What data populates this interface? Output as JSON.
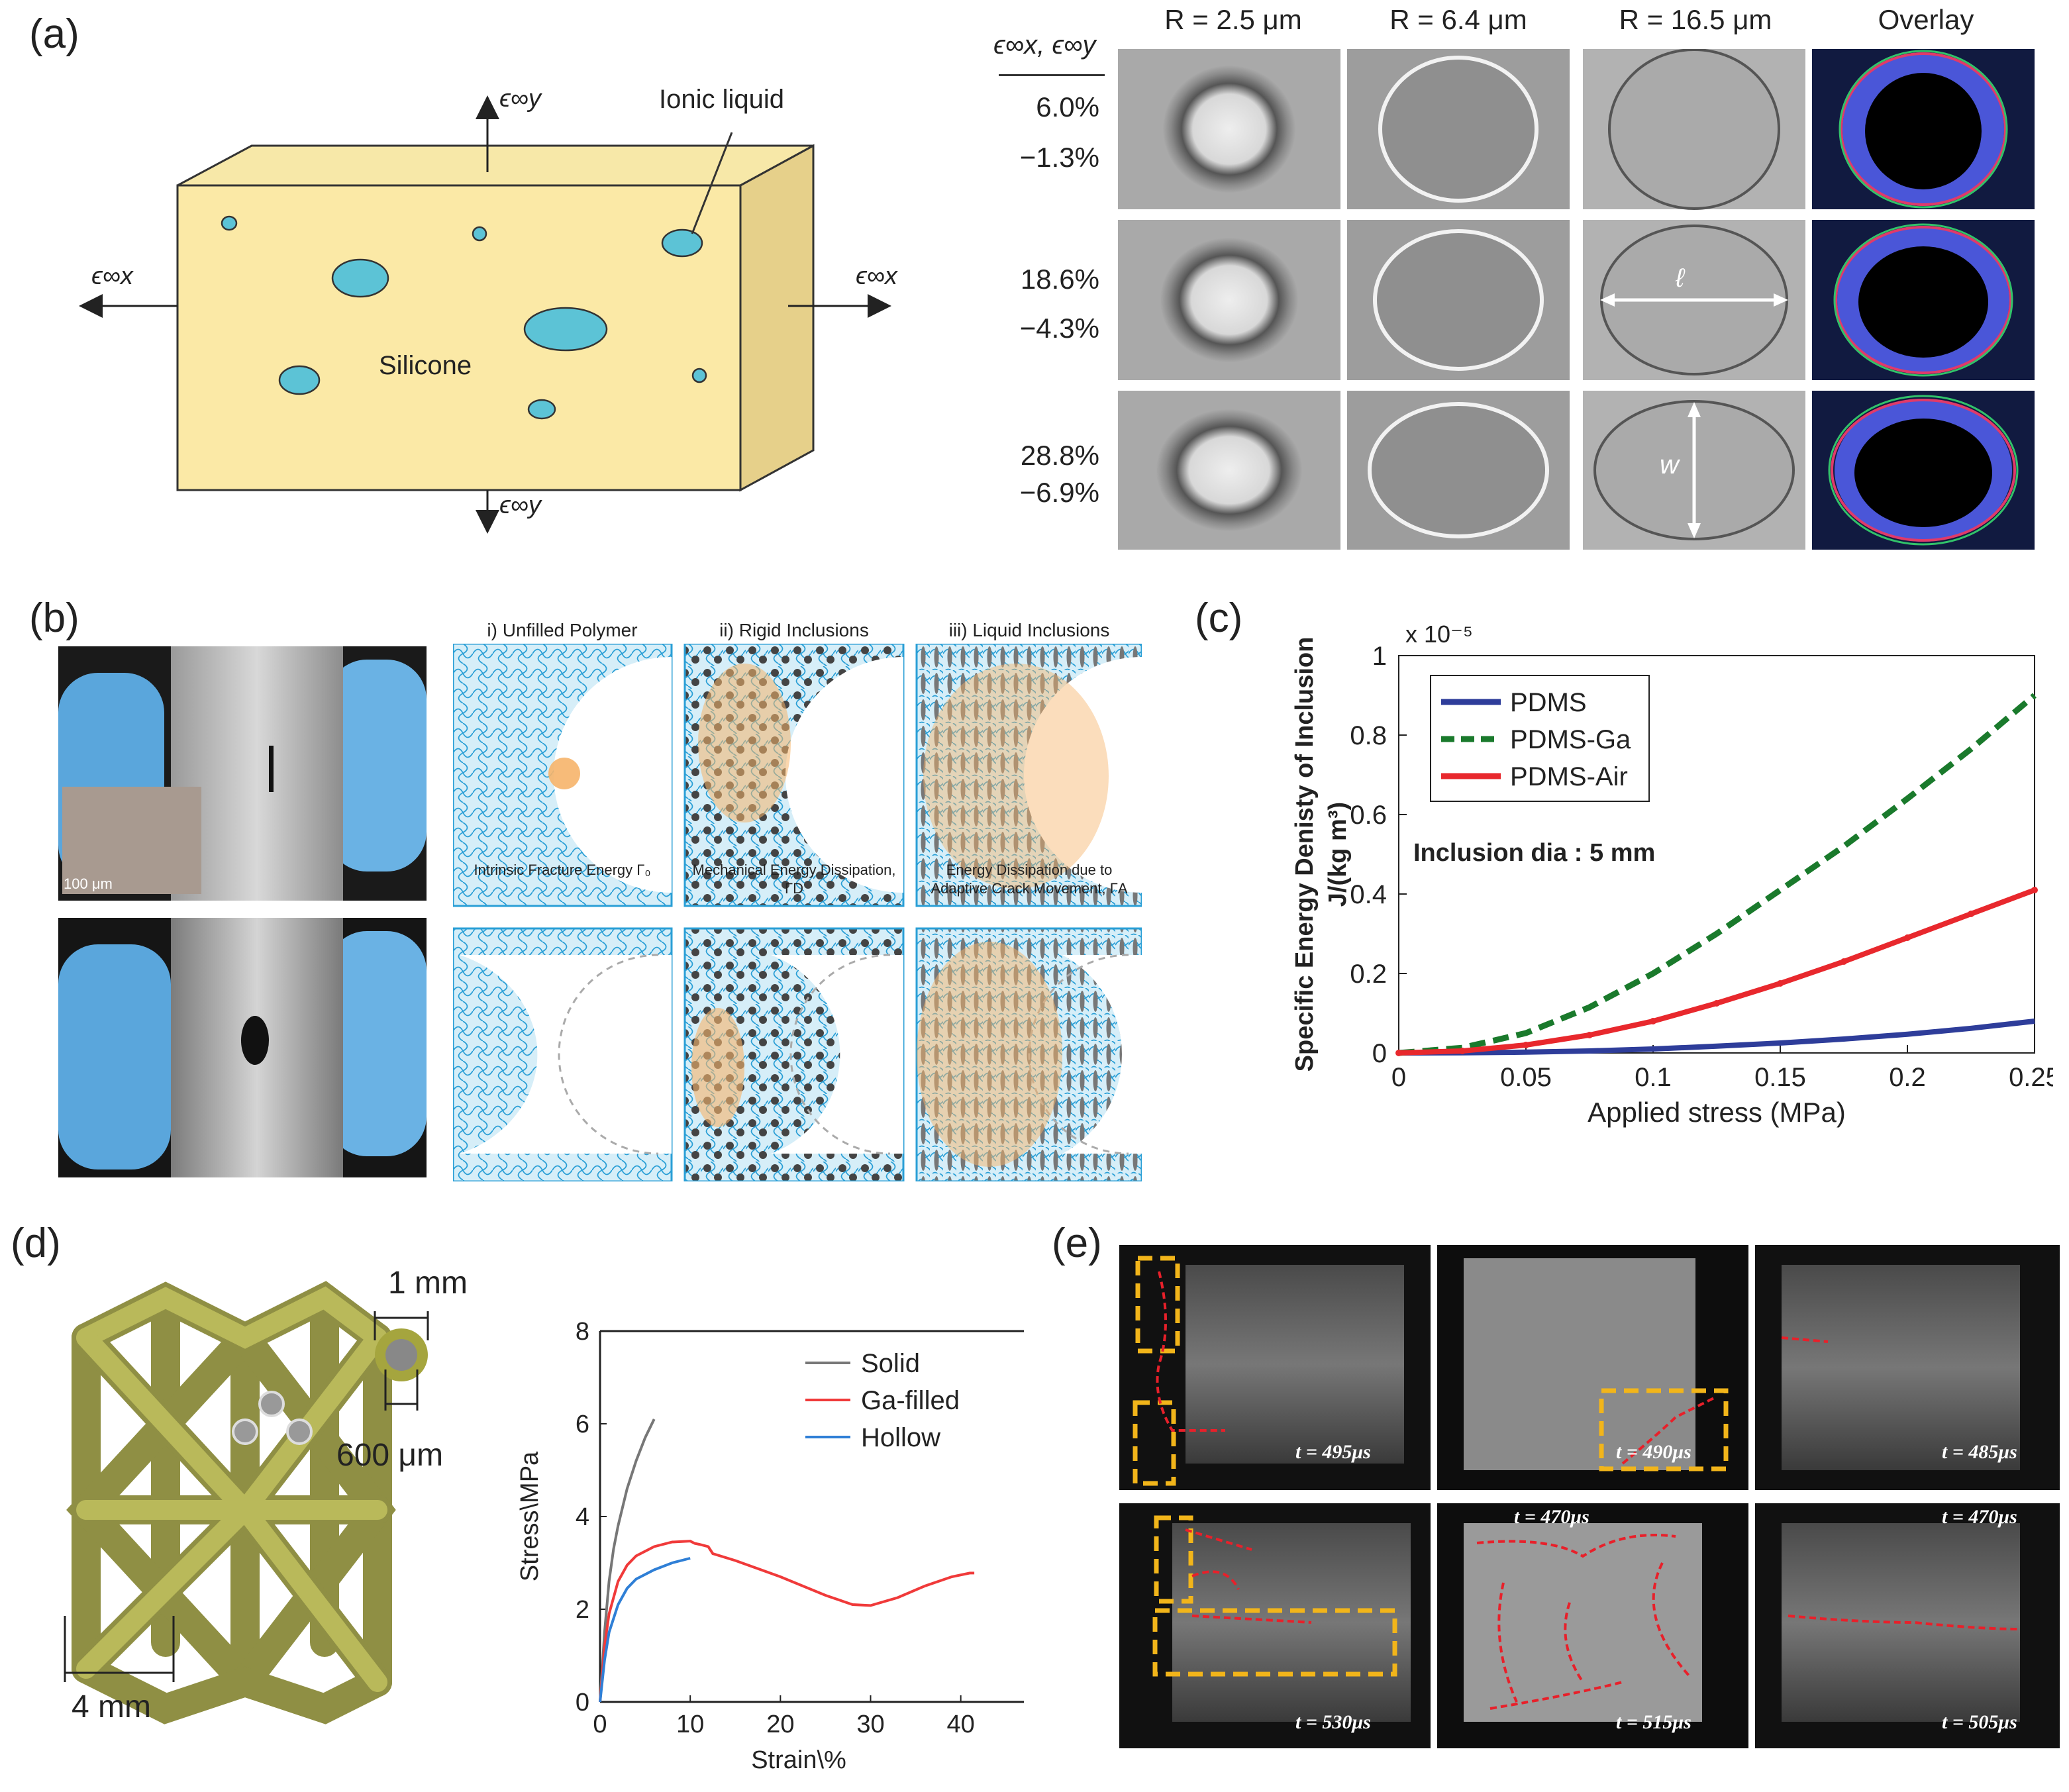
{
  "panels": {
    "a": {
      "label": "(a)",
      "schematic": {
        "ey_top": "ϵ∞y",
        "ey_bottom": "ϵ∞y",
        "ex_left": "ϵ∞x",
        "ex_right": "ϵ∞x",
        "ionic_liquid": "Ionic liquid",
        "silicone": "Silicone"
      },
      "strain_header": "ϵ∞x, ϵ∞y",
      "strain_rows": [
        {
          "ex": "6.0%",
          "ey": "−1.3%"
        },
        {
          "ex": "18.6%",
          "ey": "−4.3%"
        },
        {
          "ex": "28.8%",
          "ey": "−6.9%"
        }
      ],
      "columns": [
        "R = 2.5 μm",
        "R = 6.4 μm",
        "R = 16.5 μm",
        "Overlay"
      ],
      "ell_label": "ℓ",
      "w_label": "w"
    },
    "b": {
      "label": "(b)",
      "scale_bar": "100 μm",
      "titles": [
        "i) Unfilled Polymer",
        "ii) Rigid Inclusions",
        "iii) Liquid Inclusions"
      ],
      "captions": [
        "Intrinsic Fracture Energy Γ₀",
        "Mechanical Energy Dissipation, ΓD",
        "Energy Dissipation due to Adaptive Crack Movement, ΓA"
      ]
    },
    "c": {
      "label": "(c)",
      "annotation": "Inclusion  dia : 5 mm",
      "exponent": "x 10⁻⁵"
    },
    "d": {
      "label": "(d)",
      "dim_1mm": "1 mm",
      "dim_600um": "600 μm",
      "dim_4mm": "4 mm"
    },
    "e": {
      "label": "(e)",
      "times": [
        "t = 495μs",
        "t = 490μs",
        "t = 485μs",
        "t = 530μs",
        "t = 515μs",
        "t = 505μs",
        "t = 470μs",
        "t = 470μs"
      ]
    }
  },
  "chart_data": [
    {
      "panel": "c",
      "type": "line",
      "xlabel": "Applied stress (MPa)",
      "ylabel": "Specific Energy Denisty of Inclusion J/(kg m3)",
      "xlim": [
        0,
        0.25
      ],
      "ylim": [
        0,
        1
      ],
      "x_ticks": [
        "0",
        "0.05",
        "0.1",
        "0.15",
        "0.2",
        "0.25"
      ],
      "y_ticks": [
        "0",
        "0.2",
        "0.4",
        "0.6",
        "0.8",
        "1"
      ],
      "y_scale_note": "x 10^-5",
      "legend_position": "top-left",
      "x": [
        0,
        0.025,
        0.05,
        0.075,
        0.1,
        0.125,
        0.15,
        0.175,
        0.2,
        0.225,
        0.25
      ],
      "series": [
        {
          "name": "PDMS",
          "color": "#2e3d9a",
          "style": "solid",
          "values": [
            0,
            0.0005,
            0.002,
            0.005,
            0.01,
            0.017,
            0.025,
            0.035,
            0.047,
            0.062,
            0.08
          ]
        },
        {
          "name": "PDMS-Ga",
          "color": "#1a7a2c",
          "style": "dashed",
          "values": [
            0,
            0.013,
            0.05,
            0.115,
            0.2,
            0.3,
            0.41,
            0.52,
            0.64,
            0.765,
            0.9
          ]
        },
        {
          "name": "PDMS-Air",
          "color": "#e8282d",
          "style": "solid-marker",
          "values": [
            0,
            0.005,
            0.02,
            0.045,
            0.08,
            0.125,
            0.175,
            0.23,
            0.29,
            0.35,
            0.41
          ]
        }
      ]
    },
    {
      "panel": "d",
      "type": "line",
      "xlabel": "Strain\\%",
      "ylabel": "Stress\\MPa",
      "xlim": [
        0,
        47
      ],
      "ylim": [
        0,
        8
      ],
      "x_ticks": [
        "0",
        "10",
        "20",
        "30",
        "40"
      ],
      "y_ticks": [
        "0",
        "2",
        "4",
        "6",
        "8"
      ],
      "legend_position": "top-right",
      "series": [
        {
          "name": "Solid",
          "color": "#777777",
          "x": [
            0,
            0.5,
            1,
            1.5,
            2,
            3,
            4,
            5,
            6
          ],
          "y": [
            0,
            1.5,
            2.6,
            3.3,
            3.8,
            4.6,
            5.2,
            5.7,
            6.1
          ]
        },
        {
          "name": "Ga-filled",
          "color": "#f03a3a",
          "x": [
            0,
            0.5,
            1,
            2,
            3,
            4,
            6,
            8,
            10,
            10.5,
            11,
            12,
            12.5,
            15,
            20,
            25,
            28,
            30,
            33,
            36,
            39,
            41,
            41.5
          ],
          "y": [
            0,
            1.2,
            1.9,
            2.6,
            2.95,
            3.15,
            3.35,
            3.45,
            3.47,
            3.42,
            3.4,
            3.35,
            3.2,
            3.05,
            2.7,
            2.3,
            2.1,
            2.08,
            2.25,
            2.5,
            2.7,
            2.78,
            2.78
          ]
        },
        {
          "name": "Hollow",
          "color": "#2f7fd6",
          "x": [
            0,
            0.5,
            1,
            2,
            3,
            4,
            6,
            8,
            10
          ],
          "y": [
            0,
            0.9,
            1.5,
            2.1,
            2.45,
            2.65,
            2.85,
            3.0,
            3.1
          ]
        }
      ]
    }
  ]
}
